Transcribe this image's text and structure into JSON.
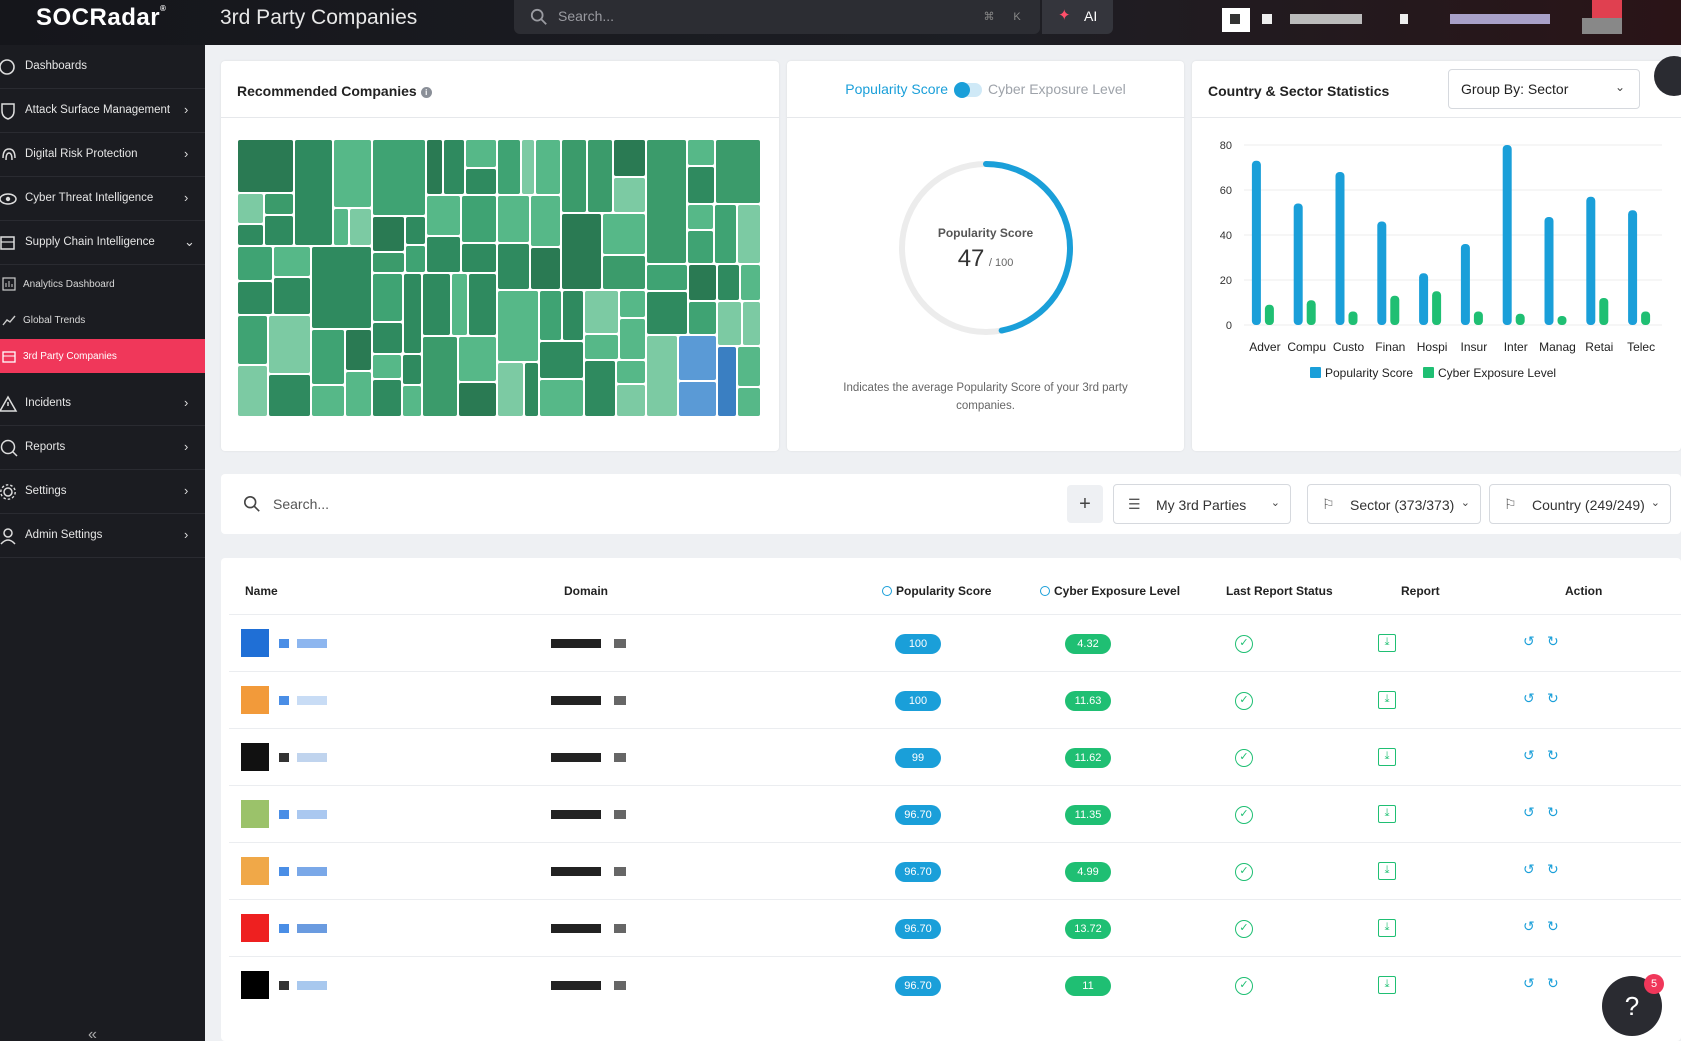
{
  "brand": {
    "name": "SOCRadar",
    "mark": "®"
  },
  "header": {
    "title": "3rd Party Companies",
    "search_placeholder": "Search...",
    "shortcut_1": "⌘",
    "shortcut_2": "K",
    "ai_label": "AI"
  },
  "sidebar": {
    "items": [
      {
        "label": "Dashboards",
        "chevron": ""
      },
      {
        "label": "Attack Surface Management",
        "chevron": "›"
      },
      {
        "label": "Digital Risk Protection",
        "chevron": "›"
      },
      {
        "label": "Cyber Threat Intelligence",
        "chevron": "›"
      },
      {
        "label": "Supply Chain Intelligence",
        "chevron": "⌄"
      }
    ],
    "sub_items": [
      {
        "label": "Analytics Dashboard"
      },
      {
        "label": "Global Trends"
      },
      {
        "label": "3rd Party Companies"
      }
    ],
    "bottom_items": [
      {
        "label": "Incidents",
        "chevron": "›"
      },
      {
        "label": "Reports",
        "chevron": "›"
      },
      {
        "label": "Settings",
        "chevron": "›"
      },
      {
        "label": "Admin Settings",
        "chevron": "›"
      }
    ],
    "collapse_glyph": "«"
  },
  "recommended": {
    "title": "Recommended Companies",
    "info": "i"
  },
  "popularity_card": {
    "toggle_on": "Popularity Score",
    "toggle_off": "Cyber Exposure Level",
    "donut_title": "Popularity Score",
    "donut_value": "47",
    "donut_max": "/ 100",
    "note": "Indicates the average Popularity Score of your 3rd party companies.",
    "score_fraction": 0.47
  },
  "stats_card": {
    "title": "Country & Sector Statistics",
    "group_by": "Group By: Sector",
    "group_chevron": "⌄"
  },
  "chart_data": {
    "type": "bar",
    "categories": [
      "Adver",
      "Compu",
      "Custo",
      "Finan",
      "Hospi",
      "Insur",
      "Inter",
      "Manag",
      "Retai",
      "Telec"
    ],
    "series": [
      {
        "name": "Popularity Score",
        "values": [
          73,
          54,
          68,
          46,
          23,
          36,
          80,
          48,
          57,
          51
        ]
      },
      {
        "name": "Cyber Exposure Level",
        "values": [
          9,
          11,
          6,
          13,
          15,
          6,
          5,
          4,
          12,
          6
        ]
      }
    ],
    "yticks": [
      "80",
      "60",
      "40",
      "20",
      "0"
    ],
    "ylim": [
      0,
      80
    ],
    "grid": true,
    "legend_position": "bottom",
    "colors": [
      "#1a9fd9",
      "#1fbf73"
    ]
  },
  "filters": {
    "search_placeholder": "Search...",
    "add": "+",
    "my_parties": "My 3rd Parties",
    "sector": "Sector (373/373)",
    "country": "Country (249/249)",
    "list_icon": "☰",
    "flag_icon": "⚐",
    "chevron": "⌄"
  },
  "table": {
    "columns": {
      "name": "Name",
      "domain": "Domain",
      "popularity": "Popularity Score",
      "exposure": "Cyber Exposure Level",
      "last_report": "Last Report Status",
      "report": "Report",
      "action": "Action"
    },
    "rows": [
      {
        "popularity": "100",
        "exposure": "4.32"
      },
      {
        "popularity": "100",
        "exposure": "11.63"
      },
      {
        "popularity": "99",
        "exposure": "11.62"
      },
      {
        "popularity": "96.70",
        "exposure": "11.35"
      },
      {
        "popularity": "96.70",
        "exposure": "4.99"
      },
      {
        "popularity": "96.70",
        "exposure": "13.72"
      },
      {
        "popularity": "96.70",
        "exposure": "11"
      }
    ],
    "status_glyph": "✓",
    "report_glyph": "⤓",
    "history_glyph": "↺",
    "refresh_glyph": "↻"
  },
  "chat": {
    "badge": "5",
    "icon": "?"
  }
}
